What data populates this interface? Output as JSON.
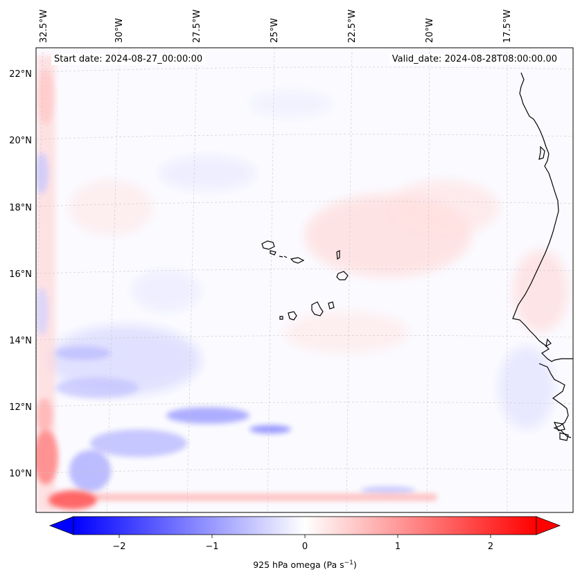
{
  "header": {
    "start_date": "Start date: 2024-08-27_00:00:00",
    "valid_date": "Valid_date: 2024-08-28T08:00:00.00"
  },
  "map": {
    "lon_labels": [
      "32.5°W",
      "30°W",
      "27.5°W",
      "25°W",
      "22.5°W",
      "20°W",
      "17.5°W"
    ],
    "lat_labels": [
      "22°N",
      "20°N",
      "18°N",
      "16°N",
      "14°N",
      "12°N",
      "10°N"
    ],
    "lon_range": [
      -32.6,
      -15.3
    ],
    "lat_range": [
      8.9,
      22.8
    ],
    "coastline_color": "#000000",
    "grid": true
  },
  "colorbar": {
    "label_prefix": "925 hPa omega (Pa s",
    "label_exponent": "−1",
    "label_suffix": ")",
    "ticks": [
      "−2",
      "−1",
      "0",
      "1",
      "2"
    ],
    "range": [
      -2.75,
      2.75
    ],
    "colormap": "bwr",
    "color_min": "#0000ff",
    "color_mid": "#ffffff",
    "color_max": "#ff0000"
  }
}
